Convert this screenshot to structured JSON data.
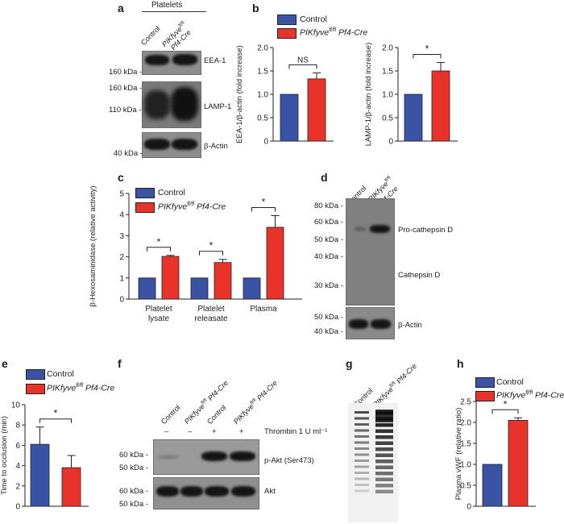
{
  "colors": {
    "control": "#3a53a4",
    "cre": "#e8322a"
  },
  "panel_a": {
    "letter": "a",
    "group_title": "Platelets",
    "lanes": [
      "Control",
      "PIKfyve fl/fl Pf4-Cre"
    ],
    "markers": {
      "m160a": "160 kDa -",
      "m160b": "160 kDa -",
      "m110": "110 kDa -",
      "m40": "40 kDa -"
    },
    "bands": {
      "eea1": "EEA-1",
      "lamp1": "LAMP-1",
      "actin": "β-Actin"
    }
  },
  "panel_d": {
    "letter": "d",
    "lanes": [
      "Control",
      "PIKfyve fl/fl Pf4-Cre"
    ],
    "markers": [
      "80 kDa -",
      "60 kDa -",
      "50 kDa -",
      "40 kDa -",
      "30 kDa -",
      "50 kDa -",
      "40 kDa -"
    ],
    "bands": {
      "pro": "Pro-cathepsin D",
      "cat": "Cathepsin D",
      "actin": "β-Actin"
    }
  },
  "panel_f": {
    "letter": "f",
    "lanes": [
      "Control",
      "PIKfyve fl/fl Pf4-Cre",
      "Control",
      "PIKfyve fl/fl Pf4-Cre"
    ],
    "thrombin_signs": [
      "–",
      "–",
      "+",
      "+"
    ],
    "thrombin_label": "Thrombin 1 U ml⁻¹",
    "markers": [
      "60 kDa -",
      "50 kDa -",
      "60 kDa -",
      "50 kDa -"
    ],
    "bands": {
      "pakt": "p-Akt (Ser473)",
      "akt": "Akt"
    }
  },
  "panel_g": {
    "letter": "g",
    "lanes": [
      "Control",
      "PIKfyve fl/fl Pf4-Cre"
    ]
  },
  "chart_data": [
    {
      "id": "b1",
      "letter": "b",
      "type": "bar",
      "categories": [
        "Control",
        "PIKfyve fl/fl Pf4-Cre"
      ],
      "values": [
        1.0,
        1.33
      ],
      "errors": [
        0,
        0.13
      ],
      "ylabel": "EEA-1/β-actin (fold increase)",
      "ylim": [
        0,
        2.0
      ],
      "yticks": [
        "0",
        "0.5",
        "1.0",
        "1.5",
        "2.0"
      ],
      "significance": "NS"
    },
    {
      "id": "b2",
      "type": "bar",
      "categories": [
        "Control",
        "PIKfyve fl/fl Pf4-Cre"
      ],
      "values": [
        1.0,
        1.5
      ],
      "errors": [
        0,
        0.18
      ],
      "ylabel": "LAMP-1/β-actin (fold increase)",
      "ylim": [
        0,
        2.0
      ],
      "yticks": [
        "0",
        "0.5",
        "1.0",
        "1.5",
        "2.0"
      ],
      "significance": "*"
    },
    {
      "id": "c",
      "letter": "c",
      "type": "bar",
      "categories": [
        "Platelet lysate",
        "Platelet releasate",
        "Plasma"
      ],
      "series": [
        {
          "name": "Control",
          "values": [
            1.0,
            1.0,
            1.0
          ],
          "errors": [
            0,
            0,
            0
          ]
        },
        {
          "name": "PIKfyve fl/fl Pf4-Cre",
          "values": [
            2.02,
            1.73,
            3.4
          ],
          "errors": [
            0.05,
            0.15,
            0.55
          ]
        }
      ],
      "ylabel": "β-Hexosaminidase (relative activity)",
      "ylim": [
        0,
        5
      ],
      "yticks": [
        "0",
        "1",
        "2",
        "3",
        "4",
        "5"
      ],
      "significance": [
        "*",
        "*",
        "*"
      ]
    },
    {
      "id": "e",
      "letter": "e",
      "type": "bar",
      "categories": [
        "Control",
        "PIKfyve fl/fl Pf4-Cre"
      ],
      "values": [
        6.1,
        3.8
      ],
      "errors": [
        1.7,
        1.2
      ],
      "ylabel": "Time to occlusion (min)",
      "ylim": [
        0,
        10
      ],
      "yticks": [
        "0",
        "2",
        "4",
        "6",
        "8",
        "10"
      ],
      "significance": "*"
    },
    {
      "id": "h",
      "letter": "h",
      "type": "bar",
      "categories": [
        "Control",
        "PIKfyve fl/fl Pf4-Cre"
      ],
      "values": [
        1.0,
        2.05
      ],
      "errors": [
        0,
        0.06
      ],
      "ylabel": "Plasma vWF (relative ratio)",
      "ylim": [
        0,
        2.5
      ],
      "yticks": [
        "0",
        "0.5",
        "1.0",
        "1.5",
        "2.0",
        "2.5"
      ],
      "significance": "*"
    }
  ],
  "legend": {
    "control": "Control",
    "cre_gene": "PIKfyve",
    "cre_sup": "fl/fl",
    "cre_rest": " Pf4-Cre"
  }
}
